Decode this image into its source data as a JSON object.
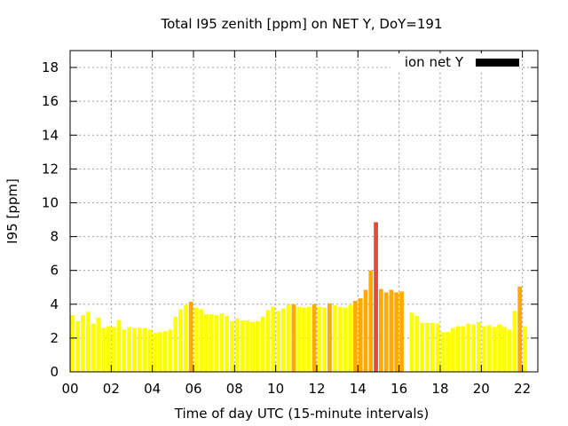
{
  "chart_data": {
    "type": "bar",
    "title": "Total I95 zenith [ppm] on NET Y, DoY=191",
    "xlabel": "Time of day UTC (15-minute intervals)",
    "ylabel": "I95 [ppm]",
    "xlim": [
      0,
      22.75
    ],
    "ylim": [
      0,
      19
    ],
    "x_ticks": [
      {
        "value": 0,
        "label": "00"
      },
      {
        "value": 2,
        "label": "02"
      },
      {
        "value": 4,
        "label": "04"
      },
      {
        "value": 6,
        "label": "06"
      },
      {
        "value": 8,
        "label": "08"
      },
      {
        "value": 10,
        "label": "10"
      },
      {
        "value": 12,
        "label": "12"
      },
      {
        "value": 14,
        "label": "14"
      },
      {
        "value": 16,
        "label": "16"
      },
      {
        "value": 18,
        "label": "18"
      },
      {
        "value": 20,
        "label": "20"
      },
      {
        "value": 22,
        "label": "22"
      }
    ],
    "y_ticks": [
      {
        "value": 0,
        "label": "0"
      },
      {
        "value": 2,
        "label": "2"
      },
      {
        "value": 4,
        "label": "4"
      },
      {
        "value": 6,
        "label": "6"
      },
      {
        "value": 8,
        "label": "8"
      },
      {
        "value": 10,
        "label": "10"
      },
      {
        "value": 12,
        "label": "12"
      },
      {
        "value": 14,
        "label": "14"
      },
      {
        "value": 16,
        "label": "16"
      },
      {
        "value": 18,
        "label": "18"
      }
    ],
    "grid": true,
    "legend": {
      "label": "ion net Y",
      "color": "#000000",
      "position": "top-right"
    },
    "bars": [
      {
        "x": 0.25,
        "value": 3.35,
        "color": "#ffff00"
      },
      {
        "x": 0.5,
        "value": 3.0,
        "color": "#ffff00"
      },
      {
        "x": 0.75,
        "value": 3.35,
        "color": "#ffff00"
      },
      {
        "x": 1.0,
        "value": 3.55,
        "color": "#ffff00"
      },
      {
        "x": 1.25,
        "value": 2.85,
        "color": "#ffff00"
      },
      {
        "x": 1.5,
        "value": 3.2,
        "color": "#ffff00"
      },
      {
        "x": 1.75,
        "value": 2.6,
        "color": "#ffff00"
      },
      {
        "x": 2.0,
        "value": 2.7,
        "color": "#ffff00"
      },
      {
        "x": 2.25,
        "value": 2.65,
        "color": "#ffff00"
      },
      {
        "x": 2.5,
        "value": 3.05,
        "color": "#ffff00"
      },
      {
        "x": 2.75,
        "value": 2.5,
        "color": "#ffff00"
      },
      {
        "x": 3.0,
        "value": 2.65,
        "color": "#ffff00"
      },
      {
        "x": 3.25,
        "value": 2.6,
        "color": "#ffff00"
      },
      {
        "x": 3.5,
        "value": 2.6,
        "color": "#ffff00"
      },
      {
        "x": 3.75,
        "value": 2.6,
        "color": "#ffff00"
      },
      {
        "x": 4.0,
        "value": 2.5,
        "color": "#ffff00"
      },
      {
        "x": 4.25,
        "value": 2.3,
        "color": "#ffff00"
      },
      {
        "x": 4.5,
        "value": 2.35,
        "color": "#ffff00"
      },
      {
        "x": 4.75,
        "value": 2.4,
        "color": "#ffff00"
      },
      {
        "x": 5.0,
        "value": 2.5,
        "color": "#ffff00"
      },
      {
        "x": 5.25,
        "value": 3.25,
        "color": "#ffff00"
      },
      {
        "x": 5.5,
        "value": 3.7,
        "color": "#ffff00"
      },
      {
        "x": 5.75,
        "value": 3.95,
        "color": "#ffff00"
      },
      {
        "x": 6.0,
        "value": 4.15,
        "color": "#ffaa00"
      },
      {
        "x": 6.25,
        "value": 3.8,
        "color": "#ffff00"
      },
      {
        "x": 6.5,
        "value": 3.7,
        "color": "#ffff00"
      },
      {
        "x": 6.75,
        "value": 3.4,
        "color": "#ffff00"
      },
      {
        "x": 7.0,
        "value": 3.4,
        "color": "#ffff00"
      },
      {
        "x": 7.25,
        "value": 3.35,
        "color": "#ffff00"
      },
      {
        "x": 7.5,
        "value": 3.45,
        "color": "#ffff00"
      },
      {
        "x": 7.75,
        "value": 3.3,
        "color": "#ffff00"
      },
      {
        "x": 8.0,
        "value": 3.0,
        "color": "#ffff00"
      },
      {
        "x": 8.25,
        "value": 3.15,
        "color": "#ffff00"
      },
      {
        "x": 8.5,
        "value": 3.05,
        "color": "#ffff00"
      },
      {
        "x": 8.75,
        "value": 3.05,
        "color": "#ffff00"
      },
      {
        "x": 9.0,
        "value": 2.95,
        "color": "#ffff00"
      },
      {
        "x": 9.25,
        "value": 3.0,
        "color": "#ffff00"
      },
      {
        "x": 9.5,
        "value": 3.25,
        "color": "#ffff00"
      },
      {
        "x": 9.75,
        "value": 3.65,
        "color": "#ffff00"
      },
      {
        "x": 10.0,
        "value": 3.85,
        "color": "#ffff00"
      },
      {
        "x": 10.25,
        "value": 3.6,
        "color": "#ffff00"
      },
      {
        "x": 10.5,
        "value": 3.75,
        "color": "#ffff00"
      },
      {
        "x": 10.75,
        "value": 4.0,
        "color": "#ffff00"
      },
      {
        "x": 11.0,
        "value": 4.0,
        "color": "#ffaa00"
      },
      {
        "x": 11.25,
        "value": 3.85,
        "color": "#ffff00"
      },
      {
        "x": 11.5,
        "value": 3.8,
        "color": "#ffff00"
      },
      {
        "x": 11.75,
        "value": 3.85,
        "color": "#ffff00"
      },
      {
        "x": 12.0,
        "value": 4.0,
        "color": "#ffaa00"
      },
      {
        "x": 12.25,
        "value": 3.85,
        "color": "#ffff00"
      },
      {
        "x": 12.5,
        "value": 3.8,
        "color": "#ffff00"
      },
      {
        "x": 12.75,
        "value": 4.05,
        "color": "#ffaa00"
      },
      {
        "x": 13.0,
        "value": 3.95,
        "color": "#ffff00"
      },
      {
        "x": 13.25,
        "value": 3.85,
        "color": "#ffff00"
      },
      {
        "x": 13.5,
        "value": 3.8,
        "color": "#ffff00"
      },
      {
        "x": 13.75,
        "value": 3.95,
        "color": "#ffff00"
      },
      {
        "x": 14.0,
        "value": 4.2,
        "color": "#ffaa00"
      },
      {
        "x": 14.25,
        "value": 4.35,
        "color": "#ffaa00"
      },
      {
        "x": 14.5,
        "value": 4.85,
        "color": "#ffaa00"
      },
      {
        "x": 14.75,
        "value": 6.0,
        "color": "#ffaa00"
      },
      {
        "x": 15.0,
        "value": 8.85,
        "color": "#e8483c"
      },
      {
        "x": 15.25,
        "value": 4.9,
        "color": "#ffaa00"
      },
      {
        "x": 15.5,
        "value": 4.7,
        "color": "#ffaa00"
      },
      {
        "x": 15.75,
        "value": 4.85,
        "color": "#ffaa00"
      },
      {
        "x": 16.0,
        "value": 4.7,
        "color": "#ffaa00"
      },
      {
        "x": 16.25,
        "value": 4.75,
        "color": "#ffaa00"
      },
      {
        "x": 16.75,
        "value": 3.5,
        "color": "#ffff00"
      },
      {
        "x": 17.0,
        "value": 3.3,
        "color": "#ffff00"
      },
      {
        "x": 17.25,
        "value": 2.9,
        "color": "#ffff00"
      },
      {
        "x": 17.5,
        "value": 2.9,
        "color": "#ffff00"
      },
      {
        "x": 17.75,
        "value": 2.9,
        "color": "#ffff00"
      },
      {
        "x": 18.0,
        "value": 2.85,
        "color": "#ffff00"
      },
      {
        "x": 18.25,
        "value": 2.35,
        "color": "#ffff00"
      },
      {
        "x": 18.5,
        "value": 2.35,
        "color": "#ffff00"
      },
      {
        "x": 18.75,
        "value": 2.6,
        "color": "#ffff00"
      },
      {
        "x": 19.0,
        "value": 2.7,
        "color": "#ffff00"
      },
      {
        "x": 19.25,
        "value": 2.7,
        "color": "#ffff00"
      },
      {
        "x": 19.5,
        "value": 2.85,
        "color": "#ffff00"
      },
      {
        "x": 19.75,
        "value": 2.8,
        "color": "#ffff00"
      },
      {
        "x": 20.0,
        "value": 2.95,
        "color": "#ffff00"
      },
      {
        "x": 20.25,
        "value": 2.7,
        "color": "#ffff00"
      },
      {
        "x": 20.5,
        "value": 2.75,
        "color": "#ffff00"
      },
      {
        "x": 20.75,
        "value": 2.65,
        "color": "#ffff00"
      },
      {
        "x": 21.0,
        "value": 2.8,
        "color": "#ffff00"
      },
      {
        "x": 21.25,
        "value": 2.65,
        "color": "#ffff00"
      },
      {
        "x": 21.5,
        "value": 2.5,
        "color": "#ffff00"
      },
      {
        "x": 21.75,
        "value": 3.6,
        "color": "#ffff00"
      },
      {
        "x": 22.0,
        "value": 5.05,
        "color": "#ffaa00"
      },
      {
        "x": 22.25,
        "value": 2.7,
        "color": "#ffff00"
      }
    ]
  }
}
